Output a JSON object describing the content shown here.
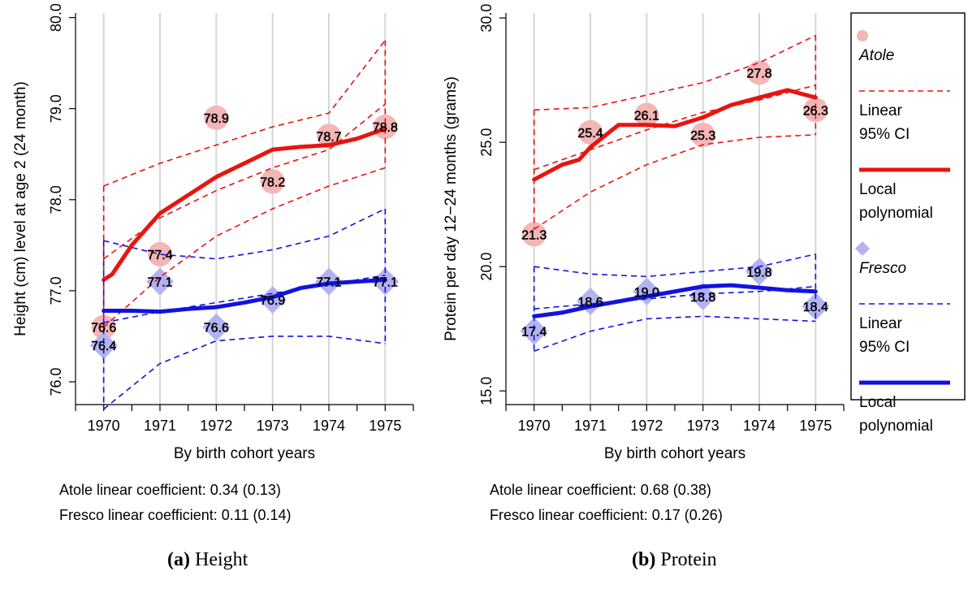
{
  "chart_data": [
    {
      "type": "line",
      "panel_letter": "(a)",
      "caption": "Height",
      "xlabel": "By birth cohort years",
      "ylabel": "Height (cm) level at age 2 (24 month)",
      "xlim": [
        1969.5,
        1975.5
      ],
      "ylim": [
        75.75,
        80.05
      ],
      "xticks": [
        1970,
        1971,
        1972,
        1973,
        1974,
        1975
      ],
      "yticks": [
        76.0,
        77.0,
        78.0,
        79.0,
        80.0
      ],
      "grid": "vertical",
      "series": [
        {
          "name": "Atole",
          "kind": "points",
          "marker": "circle",
          "color": "#f4b6b6",
          "points": [
            {
              "x": 1970,
              "y": 76.6,
              "label": "76.6"
            },
            {
              "x": 1971,
              "y": 77.4,
              "label": "77.4"
            },
            {
              "x": 1972,
              "y": 78.9,
              "label": "78.9"
            },
            {
              "x": 1973,
              "y": 78.2,
              "label": "78.2"
            },
            {
              "x": 1974,
              "y": 78.7,
              "label": "78.7"
            },
            {
              "x": 1975,
              "y": 78.8,
              "label": "78.8"
            }
          ]
        },
        {
          "name": "Fresco",
          "kind": "points",
          "marker": "diamond",
          "color": "#b3b3f2",
          "points": [
            {
              "x": 1970,
              "y": 76.4,
              "label": "76.4"
            },
            {
              "x": 1971,
              "y": 77.1,
              "label": "77.1"
            },
            {
              "x": 1972,
              "y": 76.6,
              "label": "76.6"
            },
            {
              "x": 1973,
              "y": 76.9,
              "label": "76.9"
            },
            {
              "x": 1974,
              "y": 77.1,
              "label": "77.1"
            },
            {
              "x": 1975,
              "y": 77.1,
              "label": "77.1"
            }
          ]
        },
        {
          "kind": "ci_band",
          "color": "#e8140f",
          "x": [
            1970,
            1971,
            1972,
            1973,
            1974,
            1975
          ],
          "upper": [
            78.15,
            78.4,
            78.6,
            78.8,
            78.95,
            79.75
          ],
          "lower": [
            76.6,
            77.15,
            77.6,
            77.9,
            78.15,
            78.35
          ],
          "center": [
            77.35,
            77.8,
            78.1,
            78.35,
            78.55,
            79.05
          ]
        },
        {
          "kind": "local_poly",
          "color": "#e8140f",
          "x": [
            1970,
            1970.15,
            1970.5,
            1971,
            1971.5,
            1972,
            1972.5,
            1973,
            1973.5,
            1974,
            1974.5,
            1975
          ],
          "y": [
            77.12,
            77.18,
            77.5,
            77.85,
            78.05,
            78.25,
            78.4,
            78.55,
            78.58,
            78.6,
            78.67,
            78.78
          ]
        },
        {
          "kind": "ci_band",
          "color": "#1212e0",
          "x": [
            1970,
            1971,
            1972,
            1973,
            1974,
            1975
          ],
          "upper": [
            77.55,
            77.4,
            77.35,
            77.45,
            77.6,
            77.9
          ],
          "lower": [
            75.7,
            76.2,
            76.45,
            76.5,
            76.5,
            76.42
          ],
          "center": [
            76.65,
            76.77,
            76.87,
            76.97,
            77.07,
            77.17
          ]
        },
        {
          "kind": "local_poly",
          "color": "#1212e0",
          "x": [
            1970,
            1970.5,
            1971,
            1971.5,
            1972,
            1972.5,
            1973,
            1973.5,
            1974,
            1974.5,
            1975
          ],
          "y": [
            76.78,
            76.78,
            76.77,
            76.8,
            76.82,
            76.87,
            76.93,
            77.03,
            77.08,
            77.1,
            77.12
          ]
        }
      ],
      "coefficients": [
        "Atole linear coefficient: 0.34 (0.13)",
        "Fresco linear coefficient: 0.11 (0.14)"
      ]
    },
    {
      "type": "line",
      "panel_letter": "(b)",
      "caption": "Protein",
      "xlabel": "By birth cohort years",
      "ylabel": "Protein per day 12−24 months (grams)",
      "xlim": [
        1969.5,
        1975.5
      ],
      "ylim": [
        14.45,
        30.2
      ],
      "xticks": [
        1970,
        1971,
        1972,
        1973,
        1974,
        1975
      ],
      "yticks": [
        15.0,
        20.0,
        25.0,
        30.0
      ],
      "grid": "vertical",
      "series": [
        {
          "name": "Atole",
          "kind": "points",
          "marker": "circle",
          "color": "#f4b6b6",
          "points": [
            {
              "x": 1970,
              "y": 21.3,
              "label": "21.3"
            },
            {
              "x": 1971,
              "y": 25.4,
              "label": "25.4"
            },
            {
              "x": 1972,
              "y": 26.1,
              "label": "26.1"
            },
            {
              "x": 1973,
              "y": 25.3,
              "label": "25.3"
            },
            {
              "x": 1974,
              "y": 27.8,
              "label": "27.8"
            },
            {
              "x": 1975,
              "y": 26.3,
              "label": "26.3"
            }
          ]
        },
        {
          "name": "Fresco",
          "kind": "points",
          "marker": "diamond",
          "color": "#b3b3f2",
          "points": [
            {
              "x": 1970,
              "y": 17.4,
              "label": "17.4"
            },
            {
              "x": 1971,
              "y": 18.6,
              "label": "18.6"
            },
            {
              "x": 1972,
              "y": 19.0,
              "label": "19.0"
            },
            {
              "x": 1973,
              "y": 18.8,
              "label": "18.8"
            },
            {
              "x": 1974,
              "y": 19.8,
              "label": "19.8"
            },
            {
              "x": 1975,
              "y": 18.4,
              "label": "18.4"
            }
          ]
        },
        {
          "kind": "ci_band",
          "color": "#e8140f",
          "x": [
            1970,
            1971,
            1972,
            1973,
            1974,
            1975
          ],
          "upper": [
            26.3,
            26.4,
            26.9,
            27.4,
            28.2,
            29.3
          ],
          "lower": [
            21.5,
            23.0,
            24.1,
            24.9,
            25.2,
            25.3
          ],
          "center": [
            23.9,
            24.7,
            25.5,
            26.2,
            26.7,
            27.3
          ]
        },
        {
          "kind": "local_poly",
          "color": "#e8140f",
          "x": [
            1970,
            1970.5,
            1970.8,
            1971,
            1971.5,
            1972,
            1972.5,
            1973,
            1973.5,
            1974,
            1974.5,
            1975
          ],
          "y": [
            23.5,
            24.1,
            24.3,
            24.8,
            25.7,
            25.7,
            25.65,
            26.0,
            26.5,
            26.8,
            27.1,
            26.8
          ]
        },
        {
          "kind": "ci_band",
          "color": "#1212e0",
          "x": [
            1970,
            1971,
            1972,
            1973,
            1974,
            1975
          ],
          "upper": [
            20.0,
            19.7,
            19.6,
            19.8,
            20.0,
            20.5
          ],
          "lower": [
            16.6,
            17.4,
            17.9,
            18.0,
            17.9,
            17.8
          ],
          "center": [
            18.3,
            18.5,
            18.7,
            18.9,
            19.0,
            19.2
          ]
        },
        {
          "kind": "local_poly",
          "color": "#1212e0",
          "x": [
            1970,
            1970.5,
            1971,
            1971.5,
            1972,
            1972.5,
            1973,
            1973.5,
            1974,
            1974.5,
            1975
          ],
          "y": [
            18.0,
            18.15,
            18.4,
            18.6,
            18.8,
            19.0,
            19.2,
            19.25,
            19.15,
            19.05,
            19.0
          ]
        }
      ],
      "coefficients": [
        "Atole linear coefficient: 0.68 (0.38)",
        "Fresco linear coefficient: 0.17 (0.26)"
      ]
    }
  ],
  "legend": {
    "placement": "right",
    "items": [
      {
        "label_lines": [
          "Atole"
        ],
        "italic": true,
        "symbol": "circle",
        "color": "#f4b6b6"
      },
      {
        "label_lines": [
          "Linear",
          "95% CI"
        ],
        "italic": false,
        "symbol": "dashed",
        "color": "#e8140f"
      },
      {
        "label_lines": [
          "Local",
          "polynomial"
        ],
        "italic": false,
        "symbol": "solid",
        "color": "#e8140f"
      },
      {
        "label_lines": [
          "Fresco"
        ],
        "italic": true,
        "symbol": "diamond",
        "color": "#b3b3f2"
      },
      {
        "label_lines": [
          "Linear",
          "95% CI"
        ],
        "italic": false,
        "symbol": "dashed",
        "color": "#1212e0"
      },
      {
        "label_lines": [
          "Local",
          "polynomial"
        ],
        "italic": false,
        "symbol": "solid",
        "color": "#1212e0"
      }
    ]
  }
}
